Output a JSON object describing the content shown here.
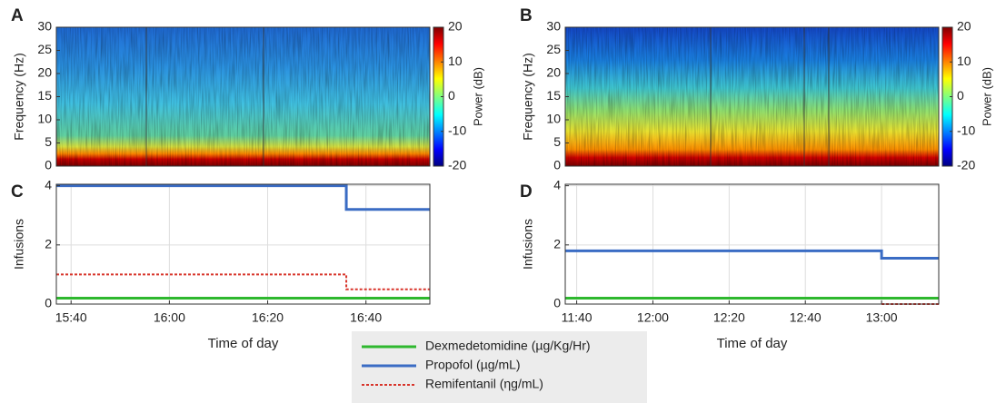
{
  "chart_data": [
    {
      "type": "spectrogram",
      "panel": "A",
      "ylabel": "Frequency (Hz)",
      "ylim": [
        0,
        30
      ],
      "yticks": [
        0,
        5,
        10,
        15,
        20,
        25,
        30
      ],
      "colorbar": {
        "label": "Power (dB)",
        "lim": [
          -20,
          20
        ],
        "ticks": [
          20,
          10,
          0,
          -10,
          -20
        ]
      }
    },
    {
      "type": "spectrogram",
      "panel": "B",
      "ylabel": "Frequency (Hz)",
      "ylim": [
        0,
        30
      ],
      "yticks": [
        0,
        5,
        10,
        15,
        20,
        25,
        30
      ],
      "colorbar": {
        "label": "Power (dB)",
        "lim": [
          -20,
          20
        ],
        "ticks": [
          20,
          10,
          0,
          -10,
          -20
        ]
      }
    },
    {
      "type": "step",
      "panel": "C",
      "ylabel": "Infusions",
      "xlabel": "Time of day",
      "grid": true,
      "xlim": [
        "15:37",
        "16:53"
      ],
      "xticks": [
        "15:40",
        "16:00",
        "16:20",
        "16:40"
      ],
      "ylim": [
        0,
        4.05
      ],
      "yticks": [
        0,
        2,
        4
      ],
      "x": [
        "15:37",
        "16:36",
        "16:53"
      ],
      "series": [
        {
          "values": [
            0.2,
            0.2,
            0.2
          ]
        },
        {
          "values": [
            4,
            3.2,
            3.2
          ]
        },
        {
          "values": [
            1,
            0.5,
            0.5
          ]
        }
      ]
    },
    {
      "type": "step",
      "panel": "D",
      "ylabel": "Infusions",
      "xlabel": "Time of day",
      "grid": true,
      "xlim": [
        "11:37",
        "13:15"
      ],
      "xticks": [
        "11:40",
        "12:00",
        "12:20",
        "12:40",
        "13:00"
      ],
      "ylim": [
        0,
        4.05
      ],
      "yticks": [
        0,
        2,
        4
      ],
      "x": [
        "11:37",
        "13:00",
        "13:15"
      ],
      "series": [
        {
          "values": [
            0.2,
            0.2,
            0.2
          ]
        },
        {
          "values": [
            1.8,
            1.55,
            1.55
          ]
        },
        {
          "values": [
            null,
            0,
            0
          ]
        }
      ]
    }
  ],
  "legend": [
    {
      "name": "Dexmedetomidine (µg/Kg/Hr)",
      "color": "#2eb82e",
      "dash": "solid"
    },
    {
      "name": "Propofol (µg/mL)",
      "color": "#3a6cc4",
      "dash": "solid"
    },
    {
      "name": "Remifentanil (ηg/mL)",
      "color": "#d8342a",
      "dash": "dotted"
    }
  ]
}
